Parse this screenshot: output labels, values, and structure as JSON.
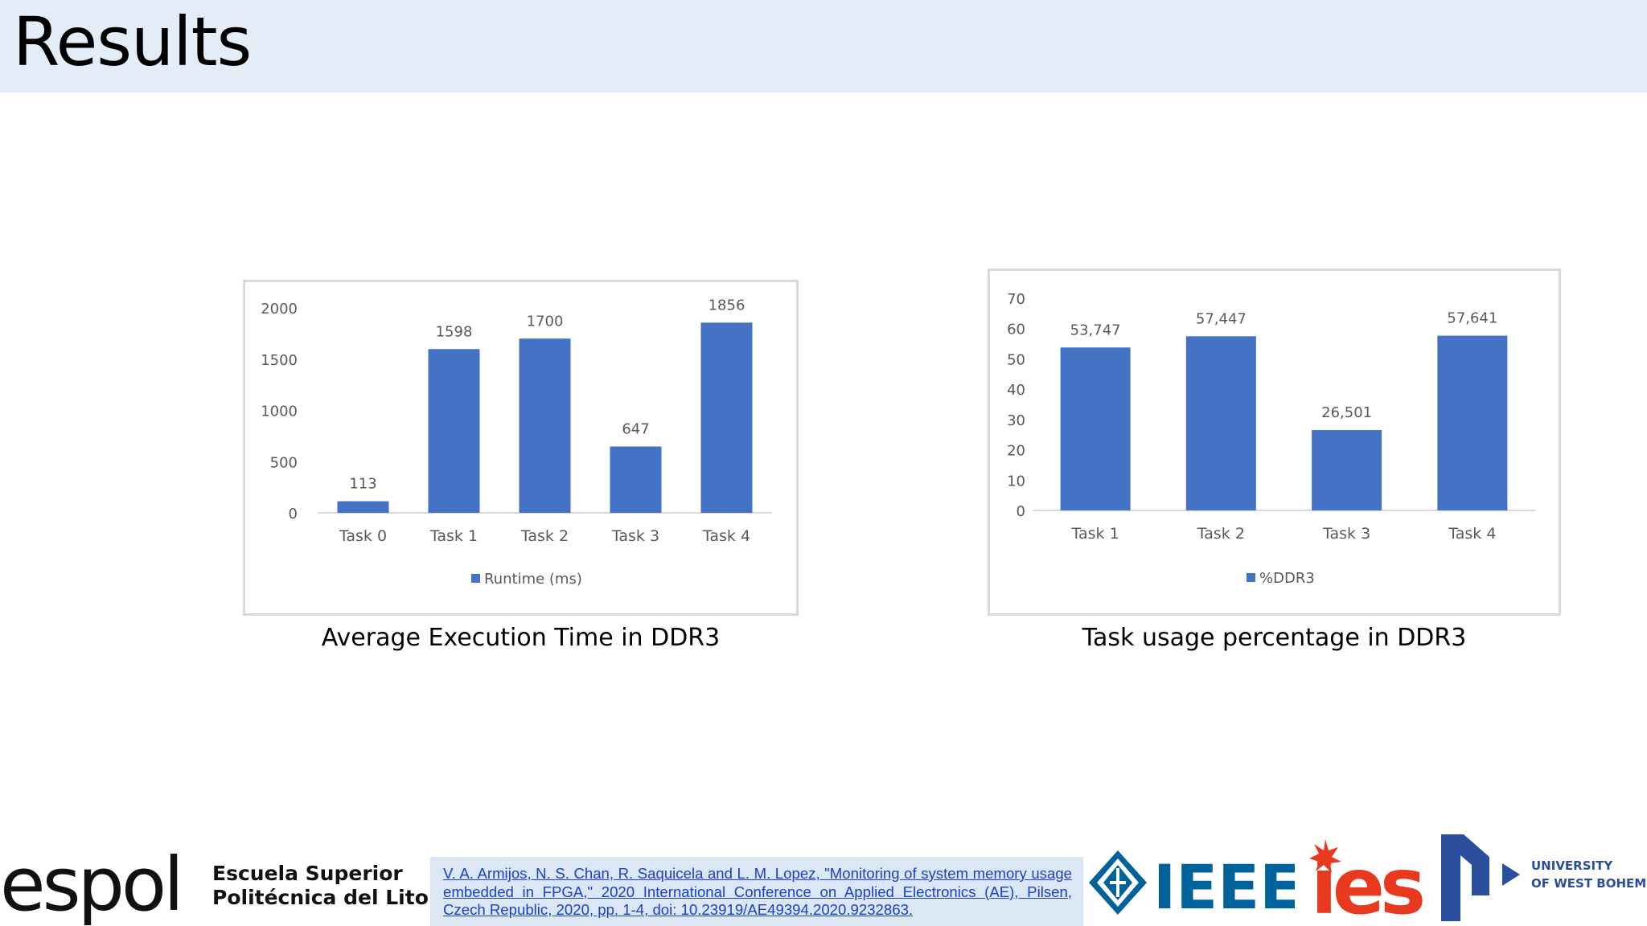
{
  "slide": {
    "title": "Results"
  },
  "chart_data": [
    {
      "type": "bar",
      "categories": [
        "Task 0",
        "Task 1",
        "Task 2",
        "Task 3",
        "Task 4"
      ],
      "series": [
        {
          "name": "Runtime (ms)",
          "values": [
            113,
            1598,
            1700,
            647,
            1856
          ],
          "labels": [
            "113",
            "1598",
            "1700",
            "647",
            "1856"
          ]
        }
      ],
      "yticks": [
        "0",
        "500",
        "1000",
        "1500",
        "2000"
      ],
      "ylim": [
        0,
        2000
      ],
      "legend": "bottom",
      "grid": false,
      "color": "#4472c4"
    },
    {
      "type": "bar",
      "categories": [
        "Task 1",
        "Task 2",
        "Task 3",
        "Task 4"
      ],
      "series": [
        {
          "name": "%DDR3",
          "values": [
            53.747,
            57.447,
            26.501,
            57.641
          ],
          "labels": [
            "53,747",
            "57,447",
            "26,501",
            "57,641"
          ]
        }
      ],
      "yticks": [
        "0",
        "10",
        "20",
        "30",
        "40",
        "50",
        "60",
        "70"
      ],
      "ylim": [
        0,
        70
      ],
      "legend": "bottom",
      "grid": false,
      "color": "#4472c4"
    }
  ],
  "captions": {
    "chart1": "Average Execution Time in DDR3",
    "chart2": "Task usage percentage in DDR3"
  },
  "footer": {
    "citation": "V. A. Armijos, N. S. Chan, R. Saquicela and L. M. Lopez, \"Monitoring of system memory usage embedded in FPGA,\" 2020 International Conference on Applied Electronics (AE), Pilsen, Czech Republic, 2020, pp. 1-4, doi: 10.23919/AE49394.2020.9232863.",
    "espol_wordmark": "espol",
    "espol_line1": "Escuela Superior",
    "espol_line2": "Politécnica del Litoral",
    "ieee_wordmark": "IEEE",
    "ies_wordmark": "ies",
    "uwb_line1": "UNIVERSITY",
    "uwb_line2": "OF WEST BOHEMIA"
  }
}
